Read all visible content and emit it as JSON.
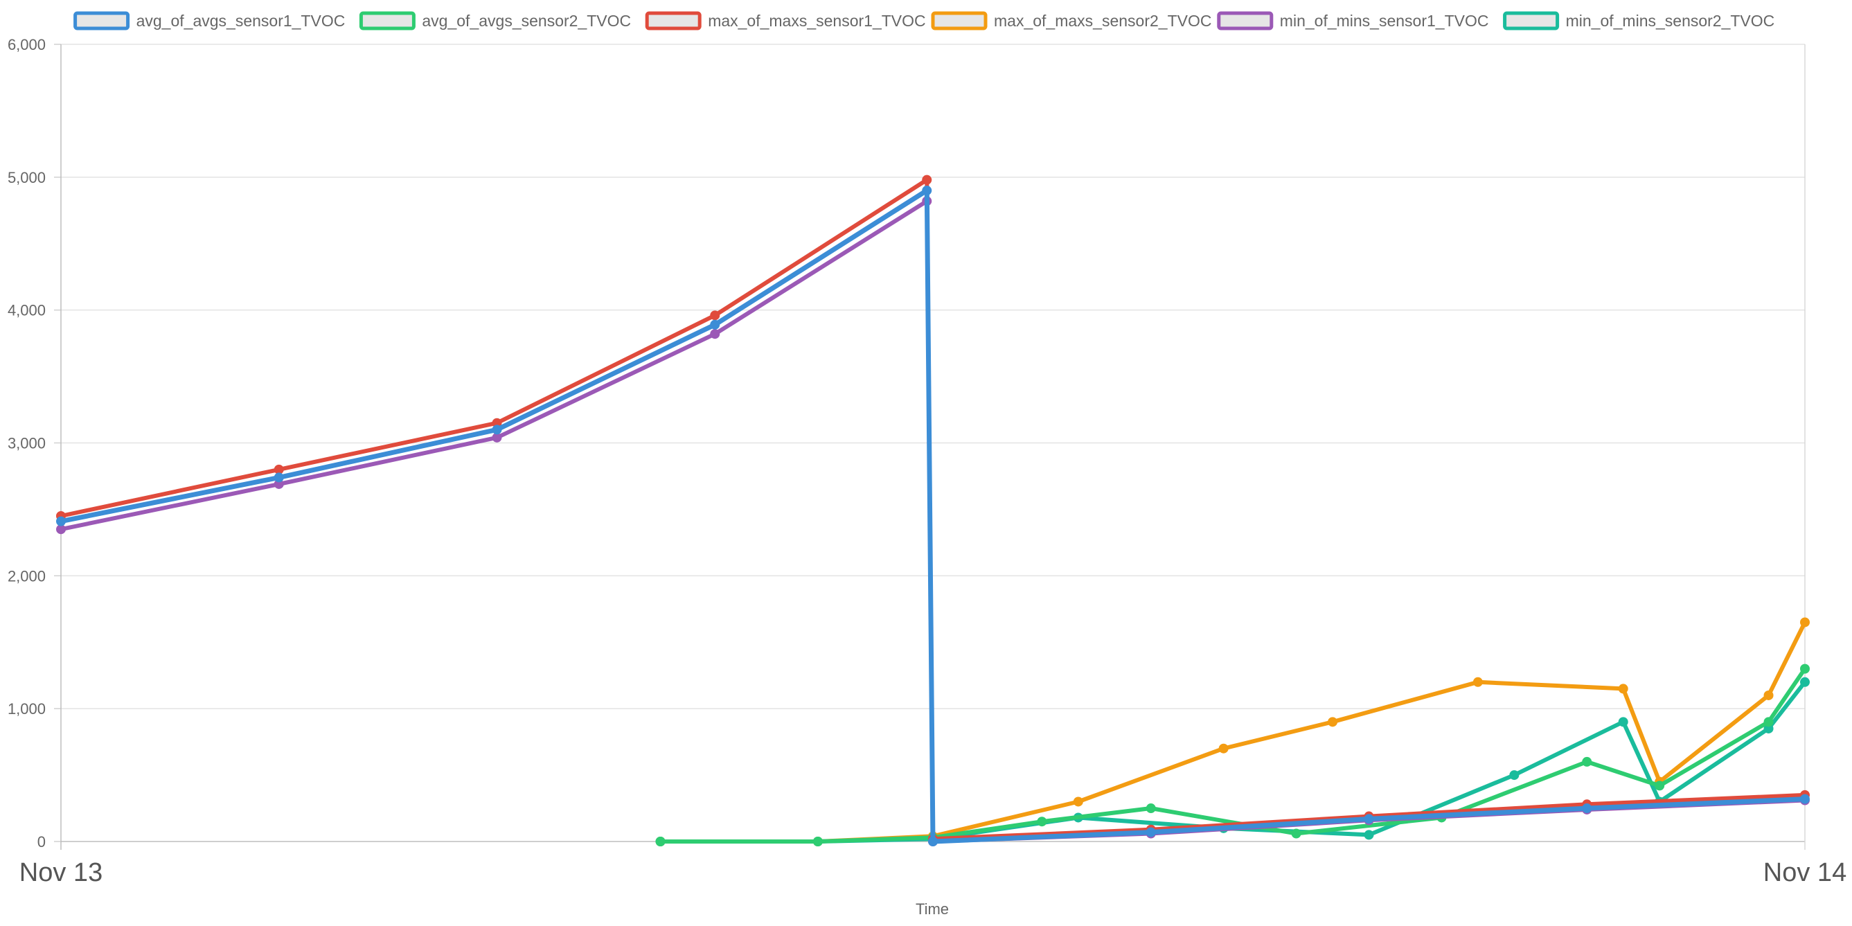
{
  "chart_data": {
    "type": "line",
    "title": "",
    "xlabel": "Time",
    "ylabel": "",
    "ylim": [
      0,
      6000
    ],
    "yticks": [
      0,
      1000,
      2000,
      3000,
      4000,
      5000,
      6000
    ],
    "ytick_labels": [
      "0",
      "1,000",
      "2,000",
      "3,000",
      "4,000",
      "5,000",
      "6,000"
    ],
    "xlim": [
      "Nov 13 00:00",
      "Nov 14 00:00"
    ],
    "xtick_labels": [
      "Nov 13",
      "Nov 14"
    ],
    "grid": true,
    "legend_position": "top",
    "series": [
      {
        "name": "avg_of_avgs_sensor1_TVOC",
        "color": "#3c8dd6",
        "points": [
          [
            "Nov 13 00:00",
            2410
          ],
          [
            "Nov 13 03:00",
            2740
          ],
          [
            "Nov 13 06:00",
            3100
          ],
          [
            "Nov 13 09:00",
            3890
          ],
          [
            "Nov 13 11:55",
            4900
          ],
          [
            "Nov 13 12:00",
            0
          ],
          [
            "Nov 13 15:00",
            70
          ],
          [
            "Nov 13 18:00",
            170
          ],
          [
            "Nov 13 21:00",
            250
          ],
          [
            "Nov 14 00:00",
            320
          ]
        ]
      },
      {
        "name": "avg_of_avgs_sensor2_TVOC",
        "color": "#2ecc71",
        "points": [
          [
            "Nov 13 08:15",
            0
          ],
          [
            "Nov 13 10:25",
            0
          ],
          [
            "Nov 13 12:00",
            30
          ],
          [
            "Nov 13 13:30",
            150
          ],
          [
            "Nov 13 15:00",
            250
          ],
          [
            "Nov 13 17:00",
            60
          ],
          [
            "Nov 13 19:00",
            180
          ],
          [
            "Nov 13 21:00",
            600
          ],
          [
            "Nov 13 22:00",
            420
          ],
          [
            "Nov 13 23:30",
            900
          ],
          [
            "Nov 14 00:00",
            1300
          ]
        ]
      },
      {
        "name": "max_of_maxs_sensor1_TVOC",
        "color": "#e04b3c",
        "points": [
          [
            "Nov 13 00:00",
            2450
          ],
          [
            "Nov 13 03:00",
            2800
          ],
          [
            "Nov 13 06:00",
            3150
          ],
          [
            "Nov 13 09:00",
            3960
          ],
          [
            "Nov 13 11:55",
            4980
          ],
          [
            "Nov 13 12:00",
            20
          ],
          [
            "Nov 13 15:00",
            90
          ],
          [
            "Nov 13 18:00",
            190
          ],
          [
            "Nov 13 21:00",
            280
          ],
          [
            "Nov 14 00:00",
            350
          ]
        ]
      },
      {
        "name": "max_of_maxs_sensor2_TVOC",
        "color": "#f39c12",
        "points": [
          [
            "Nov 13 08:15",
            0
          ],
          [
            "Nov 13 10:25",
            0
          ],
          [
            "Nov 13 12:00",
            40
          ],
          [
            "Nov 13 14:00",
            300
          ],
          [
            "Nov 13 16:00",
            700
          ],
          [
            "Nov 13 17:30",
            900
          ],
          [
            "Nov 13 19:30",
            1200
          ],
          [
            "Nov 13 21:30",
            1150
          ],
          [
            "Nov 13 22:00",
            450
          ],
          [
            "Nov 13 23:30",
            1100
          ],
          [
            "Nov 14 00:00",
            1650
          ]
        ]
      },
      {
        "name": "min_of_mins_sensor1_TVOC",
        "color": "#9b59b6",
        "points": [
          [
            "Nov 13 00:00",
            2350
          ],
          [
            "Nov 13 03:00",
            2690
          ],
          [
            "Nov 13 06:00",
            3040
          ],
          [
            "Nov 13 09:00",
            3820
          ],
          [
            "Nov 13 11:55",
            4820
          ],
          [
            "Nov 13 12:00",
            0
          ],
          [
            "Nov 13 15:00",
            60
          ],
          [
            "Nov 13 18:00",
            160
          ],
          [
            "Nov 13 21:00",
            240
          ],
          [
            "Nov 14 00:00",
            310
          ]
        ]
      },
      {
        "name": "min_of_mins_sensor2_TVOC",
        "color": "#1abc9c",
        "points": [
          [
            "Nov 13 08:15",
            0
          ],
          [
            "Nov 13 10:25",
            0
          ],
          [
            "Nov 13 12:00",
            20
          ],
          [
            "Nov 13 14:00",
            180
          ],
          [
            "Nov 13 16:00",
            100
          ],
          [
            "Nov 13 18:00",
            50
          ],
          [
            "Nov 13 20:00",
            500
          ],
          [
            "Nov 13 21:30",
            900
          ],
          [
            "Nov 13 22:00",
            300
          ],
          [
            "Nov 13 23:30",
            850
          ],
          [
            "Nov 14 00:00",
            1200
          ]
        ]
      }
    ]
  }
}
